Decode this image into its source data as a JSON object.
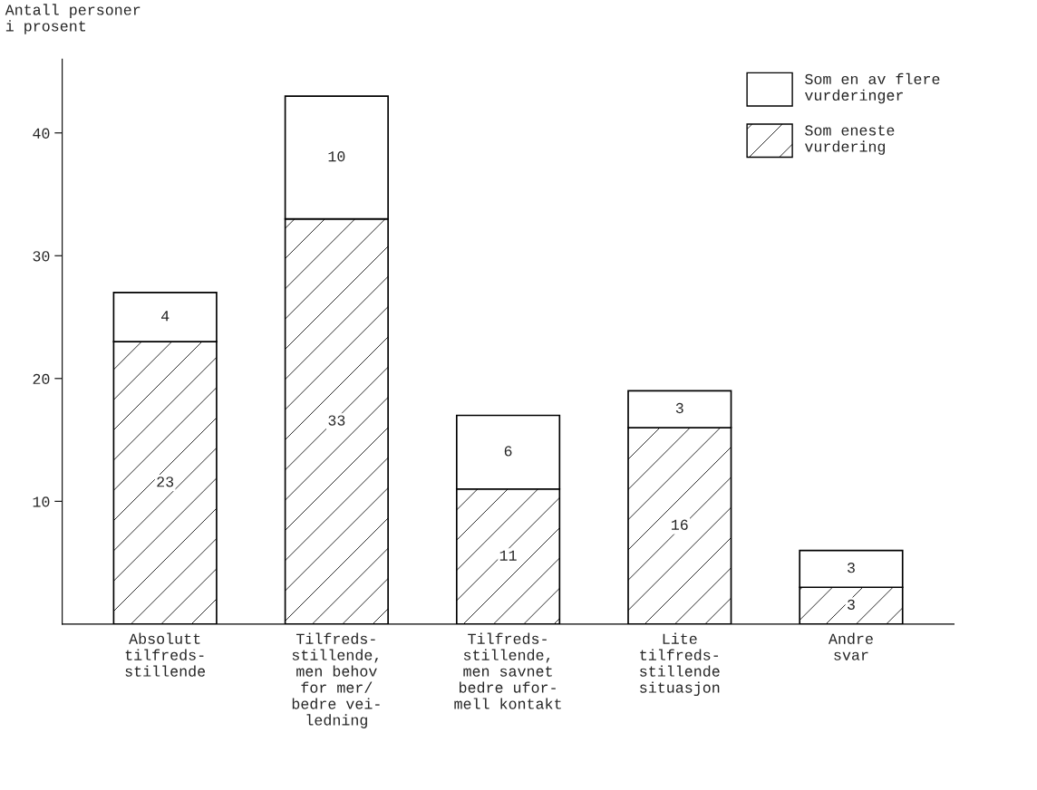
{
  "chart_data": {
    "type": "bar",
    "ylabel": "Antall personer\ni prosent",
    "stacked": true,
    "data_labels": true,
    "legend": "top right",
    "grid": false,
    "categories": [
      "Absolutt\ntilfreds-\nstillende",
      "Tilfreds-\nstillende,\nmen behov\nfor mer/\nbedre vei-\nledning",
      "Tilfreds-\nstillende,\nmen savnet\nbedre ufor-\nmell kontakt",
      "Lite\ntilfreds-\nstillende\nsituasjon",
      "Andre\nsvar"
    ],
    "ylim": [
      0,
      46
    ],
    "yticks": [
      10,
      20,
      30,
      40
    ],
    "series": [
      {
        "name": "Som eneste\nvurdering",
        "color": "#000000",
        "values": [
          23,
          33,
          11,
          16,
          3
        ]
      },
      {
        "name": "Som en av flere\nvurderinger",
        "color": "#ffffff",
        "values": [
          4,
          10,
          6,
          3,
          3
        ]
      }
    ]
  }
}
